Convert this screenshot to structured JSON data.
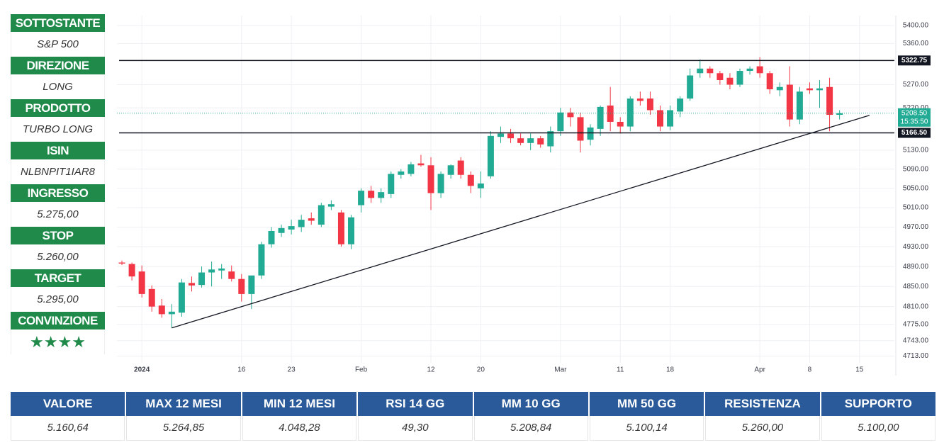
{
  "sidebar": [
    {
      "label": "SOTTOSTANTE",
      "value": "S&P 500"
    },
    {
      "label": "DIREZIONE",
      "value": "LONG"
    },
    {
      "label": "PRODOTTO",
      "value": "TURBO LONG"
    },
    {
      "label": "ISIN",
      "value": "NLBNPIT1IAR8"
    },
    {
      "label": "INGRESSO",
      "value": "5.275,00"
    },
    {
      "label": "STOP",
      "value": "5.260,00"
    },
    {
      "label": "TARGET",
      "value": "5.295,00"
    },
    {
      "label": "CONVINZIONE",
      "value": "★★★★"
    }
  ],
  "chart_data": {
    "type": "candlestick",
    "log_scale": true,
    "grid": true,
    "up_color": "#22ab94",
    "down_color": "#f23645",
    "x": [
      "2023-12-28",
      "2023-12-29",
      "2024-01-02",
      "2024-01-03",
      "2024-01-04",
      "2024-01-05",
      "2024-01-08",
      "2024-01-09",
      "2024-01-10",
      "2024-01-11",
      "2024-01-12",
      "2024-01-15",
      "2024-01-16",
      "2024-01-17",
      "2024-01-18",
      "2024-01-19",
      "2024-01-22",
      "2024-01-23",
      "2024-01-24",
      "2024-01-25",
      "2024-01-26",
      "2024-01-29",
      "2024-01-30",
      "2024-01-31",
      "2024-02-01",
      "2024-02-02",
      "2024-02-05",
      "2024-02-06",
      "2024-02-07",
      "2024-02-08",
      "2024-02-09",
      "2024-02-12",
      "2024-02-13",
      "2024-02-14",
      "2024-02-15",
      "2024-02-16",
      "2024-02-20",
      "2024-02-21",
      "2024-02-22",
      "2024-02-23",
      "2024-02-26",
      "2024-02-27",
      "2024-02-28",
      "2024-02-29",
      "2024-03-01",
      "2024-03-04",
      "2024-03-05",
      "2024-03-06",
      "2024-03-07",
      "2024-03-08",
      "2024-03-11",
      "2024-03-12",
      "2024-03-13",
      "2024-03-14",
      "2024-03-15",
      "2024-03-18",
      "2024-03-19",
      "2024-03-20",
      "2024-03-21",
      "2024-03-22",
      "2024-03-25",
      "2024-03-26",
      "2024-03-27",
      "2024-03-28",
      "2024-04-01",
      "2024-04-02",
      "2024-04-03",
      "2024-04-04",
      "2024-04-05",
      "2024-04-08",
      "2024-04-09",
      "2024-04-10",
      "2024-04-11"
    ],
    "open": [
      4898,
      4895,
      4880,
      4845,
      4812,
      4795,
      4798,
      4857,
      4853,
      4878,
      4882,
      4880,
      4865,
      4835,
      4872,
      4935,
      4958,
      4965,
      4970,
      4988,
      4975,
      5012,
      5000,
      4935,
      5015,
      5045,
      5030,
      5038,
      5078,
      5080,
      5102,
      5098,
      5040,
      5078,
      5108,
      5078,
      5050,
      5075,
      5158,
      5165,
      5155,
      5145,
      5155,
      5138,
      5170,
      5210,
      5200,
      5152,
      5175,
      5225,
      5190,
      5180,
      5240,
      5240,
      5215,
      5180,
      5212,
      5240,
      5295,
      5305,
      5295,
      5285,
      5270,
      5300,
      5310,
      5295,
      5258,
      5270,
      5195,
      5262,
      5258,
      5265,
      5205
    ],
    "high": [
      4902,
      4898,
      4892,
      4852,
      4825,
      4815,
      4865,
      4870,
      4890,
      4900,
      4895,
      4892,
      4875,
      4870,
      4940,
      4970,
      4975,
      4985,
      4995,
      5000,
      5020,
      5025,
      5005,
      4995,
      5050,
      5055,
      5050,
      5085,
      5090,
      5105,
      5120,
      5115,
      5085,
      5100,
      5115,
      5085,
      5085,
      5170,
      5180,
      5175,
      5165,
      5165,
      5160,
      5180,
      5220,
      5220,
      5210,
      5185,
      5225,
      5265,
      5200,
      5245,
      5255,
      5255,
      5225,
      5225,
      5245,
      5305,
      5325,
      5310,
      5300,
      5295,
      5305,
      5310,
      5330,
      5300,
      5275,
      5310,
      5265,
      5275,
      5280,
      5285,
      5215
    ],
    "low": [
      4893,
      4862,
      4828,
      4800,
      4788,
      4768,
      4790,
      4840,
      4848,
      4850,
      4865,
      4860,
      4820,
      4805,
      4865,
      4928,
      4950,
      4955,
      4960,
      4975,
      4970,
      5005,
      4930,
      4925,
      5000,
      5020,
      5020,
      5030,
      5070,
      5075,
      5095,
      5005,
      5030,
      5070,
      5070,
      5040,
      5030,
      5070,
      5145,
      5145,
      5140,
      5130,
      5135,
      5125,
      5160,
      5180,
      5125,
      5140,
      5160,
      5170,
      5165,
      5170,
      5225,
      5205,
      5170,
      5172,
      5200,
      5235,
      5285,
      5285,
      5270,
      5260,
      5265,
      5292,
      5285,
      5250,
      5245,
      5180,
      5185,
      5250,
      5220,
      5170,
      5195
    ],
    "close": [
      4896,
      4870,
      4835,
      4810,
      4795,
      4800,
      4858,
      4852,
      4878,
      4884,
      4886,
      4865,
      4835,
      4872,
      4935,
      4962,
      4968,
      4972,
      4985,
      4983,
      5015,
      5017,
      4935,
      4990,
      5045,
      5030,
      5042,
      5080,
      5085,
      5100,
      5098,
      5040,
      5080,
      5098,
      5078,
      5055,
      5060,
      5160,
      5165,
      5155,
      5145,
      5155,
      5142,
      5170,
      5210,
      5200,
      5150,
      5178,
      5222,
      5190,
      5180,
      5240,
      5235,
      5215,
      5180,
      5215,
      5240,
      5290,
      5305,
      5295,
      5280,
      5270,
      5300,
      5305,
      5295,
      5260,
      5265,
      5195,
      5255,
      5258,
      5262,
      5205,
      5208.5
    ],
    "xlim": [
      "2023-12-28",
      "2024-04-18"
    ],
    "xticks": [
      {
        "value": "2024-01-02",
        "label": "2024"
      },
      {
        "value": "2024-01-16",
        "label": "16"
      },
      {
        "value": "2024-01-23",
        "label": "23"
      },
      {
        "value": "2024-02-01",
        "label": "Feb"
      },
      {
        "value": "2024-02-12",
        "label": "12"
      },
      {
        "value": "2024-02-20",
        "label": "20"
      },
      {
        "value": "2024-03-01",
        "label": "Mar"
      },
      {
        "value": "2024-03-11",
        "label": "11"
      },
      {
        "value": "2024-03-18",
        "label": "18"
      },
      {
        "value": "2024-04-01",
        "label": "Apr"
      },
      {
        "value": "2024-04-08",
        "label": "8"
      },
      {
        "value": "2024-04-15",
        "label": "15"
      }
    ],
    "ylim": [
      4700,
      5422
    ],
    "yticks": [
      {
        "value": 5400,
        "label": "5400.00"
      },
      {
        "value": 5360,
        "label": "5360.00"
      },
      {
        "value": 5270,
        "label": "5270.00"
      },
      {
        "value": 5220,
        "label": "5220.00"
      },
      {
        "value": 5130,
        "label": "5130.00"
      },
      {
        "value": 5090,
        "label": "5090.00"
      },
      {
        "value": 5050,
        "label": "5050.00"
      },
      {
        "value": 5010,
        "label": "5010.00"
      },
      {
        "value": 4970,
        "label": "4970.00"
      },
      {
        "value": 4930,
        "label": "4930.00"
      },
      {
        "value": 4890,
        "label": "4890.00"
      },
      {
        "value": 4850,
        "label": "4850.00"
      },
      {
        "value": 4810,
        "label": "4810.00"
      },
      {
        "value": 4775,
        "label": "4775.00"
      },
      {
        "value": 4743,
        "label": "4743.00"
      },
      {
        "value": 4713,
        "label": "4713.00"
      }
    ],
    "levels": [
      {
        "value": 5322.75,
        "label": "5322.75"
      },
      {
        "value": 5166.5,
        "label": "5166.50"
      }
    ],
    "level_color": "#131722",
    "last_price": {
      "value": 5208.5,
      "label": "5208.50",
      "countdown": "15:35:50",
      "color": "#22ab94"
    },
    "trendline": {
      "from": [
        "2024-01-05",
        4768
      ],
      "to": [
        "2024-04-16",
        5204
      ]
    }
  },
  "table": {
    "headers": [
      "VALORE",
      "MAX 12 MESI",
      "MIN 12 MESI",
      "RSI 14 GG",
      "MM 10 GG",
      "MM 50 GG",
      "RESISTENZA",
      "SUPPORTO"
    ],
    "values": [
      "5.160,64",
      "5.264,85",
      "4.048,28",
      "49,30",
      "5.208,84",
      "5.100,14",
      "5.260,00",
      "5.100,00"
    ]
  }
}
